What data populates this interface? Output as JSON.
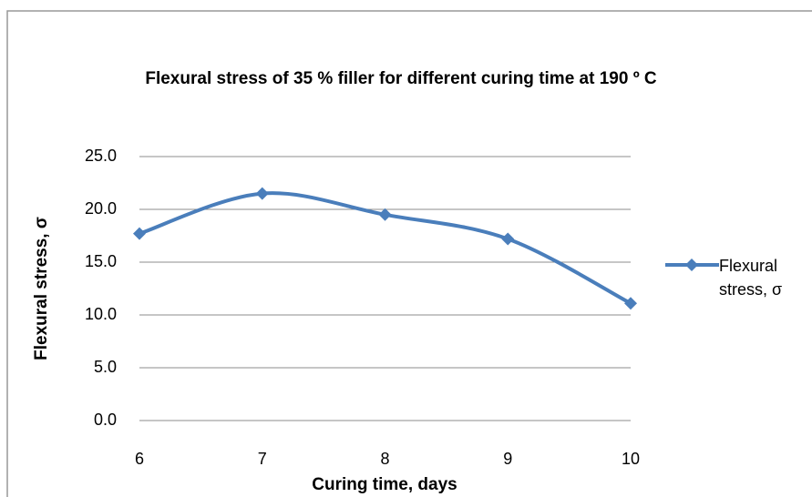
{
  "chart_data": {
    "type": "line",
    "title": "Flexural stress of 35 % filler for different curing time at 190 º C",
    "x_label": "Curing time, days",
    "y_label": "Flexural stress, σ",
    "x": [
      6,
      7,
      8,
      9,
      10
    ],
    "xlim": [
      6,
      10
    ],
    "xticks": [
      6,
      7,
      8,
      9,
      10
    ],
    "ylim": [
      0,
      25
    ],
    "yticks": [
      {
        "value": 0,
        "label": "0.0"
      },
      {
        "value": 5,
        "label": "5.0"
      },
      {
        "value": 10,
        "label": "10.0"
      },
      {
        "value": 15,
        "label": "15.0"
      },
      {
        "value": 20,
        "label": "20.0"
      },
      {
        "value": 25,
        "label": "25.0"
      }
    ],
    "grid": true,
    "legend": "right",
    "series": [
      {
        "name": "Flexural stress, σ",
        "color": "#4a7ebb",
        "values": [
          17.7,
          21.5,
          19.5,
          17.2,
          11.1
        ]
      }
    ]
  }
}
